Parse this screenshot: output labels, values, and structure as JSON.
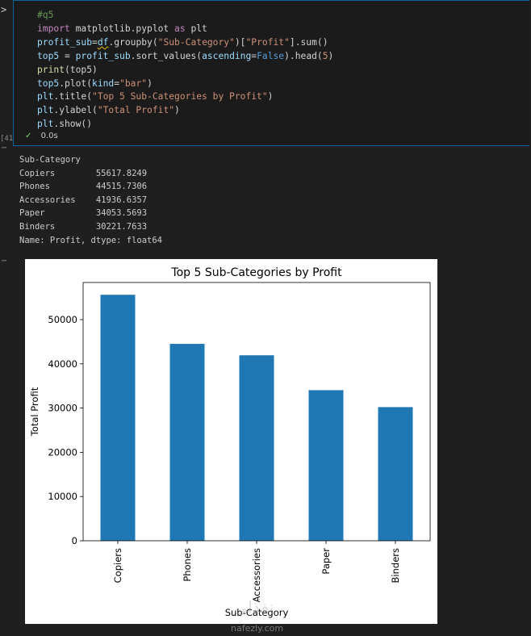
{
  "cell": {
    "execution_count": "[41]",
    "status_time": "0.0s",
    "lines": [
      [
        {
          "t": "#q5",
          "c": "cmt"
        }
      ],
      [
        {
          "t": "import",
          "c": "kw"
        },
        {
          "t": " matplotlib.pyplot ",
          "c": "plain"
        },
        {
          "t": "as",
          "c": "kw"
        },
        {
          "t": " plt",
          "c": "plain"
        }
      ],
      [
        {
          "t": "profit_sub",
          "c": "var"
        },
        {
          "t": "=",
          "c": "plain"
        },
        {
          "t": "df",
          "c": "var squig"
        },
        {
          "t": ".groupby(",
          "c": "plain"
        },
        {
          "t": "\"Sub-Category\"",
          "c": "str"
        },
        {
          "t": ")[",
          "c": "plain"
        },
        {
          "t": "\"Profit\"",
          "c": "str"
        },
        {
          "t": "].sum()",
          "c": "plain"
        }
      ],
      [
        {
          "t": "top5",
          "c": "var"
        },
        {
          "t": " = ",
          "c": "plain"
        },
        {
          "t": "profit_sub",
          "c": "var"
        },
        {
          "t": ".sort_values(",
          "c": "plain"
        },
        {
          "t": "ascending",
          "c": "var"
        },
        {
          "t": "=",
          "c": "plain"
        },
        {
          "t": "False",
          "c": "kw2"
        },
        {
          "t": ").head(",
          "c": "plain"
        },
        {
          "t": "5",
          "c": "str"
        },
        {
          "t": ")",
          "c": "plain"
        }
      ],
      [
        {
          "t": "print",
          "c": "fn"
        },
        {
          "t": "(top5)",
          "c": "plain"
        }
      ],
      [
        {
          "t": "top5",
          "c": "var"
        },
        {
          "t": ".plot(",
          "c": "plain"
        },
        {
          "t": "kind",
          "c": "var"
        },
        {
          "t": "=",
          "c": "plain"
        },
        {
          "t": "\"bar\"",
          "c": "str"
        },
        {
          "t": ")",
          "c": "plain"
        }
      ],
      [
        {
          "t": "plt",
          "c": "var"
        },
        {
          "t": ".title(",
          "c": "plain"
        },
        {
          "t": "\"Top 5 Sub-Categories by Profit\"",
          "c": "str"
        },
        {
          "t": ")",
          "c": "plain"
        }
      ],
      [
        {
          "t": "plt",
          "c": "var"
        },
        {
          "t": ".ylabel(",
          "c": "plain"
        },
        {
          "t": "\"Total Profit\"",
          "c": "str"
        },
        {
          "t": ")",
          "c": "plain"
        }
      ],
      [
        {
          "t": "plt",
          "c": "var"
        },
        {
          "t": ".show()",
          "c": "plain"
        }
      ]
    ]
  },
  "output": {
    "lines": [
      "Sub-Category",
      "Copiers        55617.8249",
      "Phones         44515.7306",
      "Accessories    41936.6357",
      "Paper          34053.5693",
      "Binders        30221.7633",
      "Name: Profit, dtype: float64"
    ]
  },
  "chart_data": {
    "type": "bar",
    "title": "Top 5 Sub-Categories by Profit",
    "xlabel": "Sub-Category",
    "ylabel": "Total Profit",
    "categories": [
      "Copiers",
      "Phones",
      "Accessories",
      "Paper",
      "Binders"
    ],
    "values": [
      55617.8249,
      44515.7306,
      41936.6357,
      34053.5693,
      30221.7633
    ],
    "yticks": [
      0,
      10000,
      20000,
      30000,
      40000,
      50000
    ],
    "ylim": [
      0,
      58398.7
    ],
    "bar_color": "#1f77b4",
    "grid": false,
    "legend": false
  },
  "watermark": {
    "text": "nafezly.com",
    "logo_text": "نفذلي"
  }
}
